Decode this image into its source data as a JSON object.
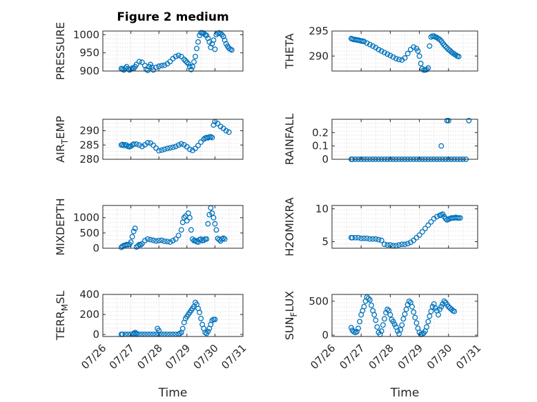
{
  "colors": {
    "marker": "#0072BD",
    "axis": "#262626",
    "grid": "#d9d9d9"
  },
  "chart_data": [
    {
      "type": "scatter",
      "title": "Figure 2 medium",
      "ylabel": "PRESSURE",
      "ylabel_sub": "",
      "ylabel_tail": "",
      "ylim": [
        900,
        1010
      ],
      "yticks": [
        900,
        950,
        1000
      ],
      "ytick_labels": [
        "900",
        "950",
        "1000"
      ],
      "grid": true,
      "x": [
        0.66,
        0.7,
        0.75,
        0.8,
        0.85,
        0.9,
        0.95,
        1.0,
        1.05,
        1.1,
        1.15,
        1.2,
        1.3,
        1.4,
        1.5,
        1.55,
        1.6,
        1.65,
        1.7,
        1.75,
        1.8,
        1.9,
        2.0,
        2.1,
        2.2,
        2.3,
        2.4,
        2.5,
        2.6,
        2.7,
        2.8,
        2.9,
        2.95,
        3.0,
        3.05,
        3.1,
        3.15,
        3.2,
        3.25,
        3.3,
        3.35,
        3.4,
        3.45,
        3.5,
        3.55,
        3.6,
        3.65,
        3.7,
        3.75,
        3.8,
        3.85,
        3.9,
        3.95,
        4.0,
        4.05,
        4.1,
        4.15,
        4.2,
        4.25,
        4.3,
        4.35,
        4.4,
        4.45,
        4.5,
        4.55,
        4.6
      ],
      "y": [
        907,
        905,
        903,
        908,
        912,
        906,
        903,
        905,
        908,
        907,
        912,
        918,
        926,
        924,
        915,
        905,
        902,
        912,
        918,
        910,
        903,
        910,
        913,
        915,
        916,
        920,
        926,
        934,
        940,
        943,
        940,
        932,
        928,
        924,
        920,
        912,
        904,
        912,
        925,
        940,
        962,
        980,
        998,
        1005,
        1005,
        1004,
        1000,
        998,
        990,
        980,
        965,
        975,
        985,
        960,
        1000,
        1004,
        1005,
        1003,
        1000,
        995,
        985,
        975,
        968,
        963,
        960,
        958
      ]
    },
    {
      "type": "scatter",
      "title": "",
      "ylabel": "THETA",
      "ylabel_sub": "",
      "ylabel_tail": "",
      "ylim": [
        287,
        295
      ],
      "yticks": [
        290,
        295
      ],
      "ytick_labels": [
        "290",
        "295"
      ],
      "grid": true,
      "x": [
        0.66,
        0.7,
        0.75,
        0.8,
        0.85,
        0.9,
        0.95,
        1.0,
        1.05,
        1.1,
        1.2,
        1.3,
        1.4,
        1.5,
        1.6,
        1.7,
        1.8,
        1.9,
        2.0,
        2.1,
        2.2,
        2.3,
        2.4,
        2.5,
        2.6,
        2.7,
        2.8,
        2.9,
        2.95,
        3.0,
        3.05,
        3.1,
        3.15,
        3.2,
        3.25,
        3.3,
        3.35,
        3.4,
        3.45,
        3.5,
        3.55,
        3.6,
        3.65,
        3.7,
        3.75,
        3.8,
        3.85,
        3.9,
        3.95,
        4.0,
        4.05,
        4.1,
        4.15,
        4.2,
        4.25,
        4.3,
        4.35
      ],
      "y": [
        293.5,
        293.4,
        293.3,
        293.3,
        293.2,
        293.2,
        293.1,
        293.0,
        293.0,
        292.9,
        292.6,
        292.3,
        292.0,
        291.7,
        291.3,
        291.0,
        290.7,
        290.4,
        290.1,
        289.8,
        289.5,
        289.3,
        289.2,
        289.6,
        290.5,
        291.3,
        291.8,
        291.5,
        291.0,
        290.0,
        288.5,
        287.5,
        287.2,
        287.2,
        287.3,
        287.6,
        292.0,
        293.8,
        294.0,
        294.0,
        293.8,
        293.7,
        293.5,
        293.3,
        293.0,
        292.6,
        292.2,
        291.9,
        291.6,
        291.3,
        291.1,
        290.8,
        290.6,
        290.4,
        290.2,
        290.0,
        289.9
      ]
    },
    {
      "type": "scatter",
      "title": "",
      "ylabel": "AIR",
      "ylabel_sub": "T",
      "ylabel_tail": "EMP",
      "ylim": [
        280,
        294
      ],
      "yticks": [
        280,
        285,
        290
      ],
      "ytick_labels": [
        "280",
        "285",
        "290"
      ],
      "grid": true,
      "x": [
        0.66,
        0.7,
        0.75,
        0.8,
        0.85,
        0.9,
        0.95,
        1.0,
        1.05,
        1.1,
        1.2,
        1.3,
        1.4,
        1.5,
        1.6,
        1.7,
        1.8,
        1.9,
        2.0,
        2.1,
        2.2,
        2.3,
        2.4,
        2.5,
        2.6,
        2.7,
        2.8,
        2.9,
        3.0,
        3.1,
        3.2,
        3.3,
        3.4,
        3.5,
        3.6,
        3.65,
        3.7,
        3.75,
        3.8,
        3.85,
        3.9,
        3.95,
        4.0,
        4.1,
        4.2,
        4.3,
        4.4,
        4.5
      ],
      "y": [
        285.0,
        285.2,
        284.8,
        285.1,
        284.9,
        284.5,
        284.4,
        284.6,
        285.0,
        285.3,
        285.3,
        285.0,
        284.5,
        285.1,
        285.8,
        285.7,
        284.9,
        283.9,
        283.0,
        283.2,
        283.5,
        283.8,
        284.0,
        284.2,
        284.5,
        285.0,
        285.4,
        285.1,
        284.4,
        283.5,
        283.1,
        283.8,
        284.8,
        286.0,
        287.0,
        287.4,
        287.6,
        287.5,
        287.8,
        287.9,
        287.6,
        292.0,
        293.2,
        292.5,
        291.5,
        290.8,
        290.0,
        289.5
      ]
    },
    {
      "type": "scatter",
      "title": "",
      "ylabel": "RAINFALL",
      "ylabel_sub": "",
      "ylabel_tail": "",
      "ylim": [
        0,
        0.3
      ],
      "yticks": [
        0,
        0.1,
        0.2
      ],
      "ytick_labels": [
        "0",
        "0.1",
        "0.2"
      ],
      "grid": true,
      "x": [
        0.66,
        0.7,
        0.8,
        0.9,
        1.0,
        1.1,
        1.2,
        1.3,
        1.4,
        1.5,
        1.6,
        1.7,
        1.8,
        1.9,
        2.0,
        2.1,
        2.2,
        2.3,
        2.4,
        2.5,
        2.6,
        2.7,
        2.8,
        2.9,
        3.0,
        3.1,
        3.2,
        3.3,
        3.4,
        3.5,
        3.6,
        3.7,
        3.8,
        3.9,
        4.0,
        4.1,
        4.2,
        4.3,
        4.4,
        4.5,
        4.6,
        3.75,
        3.95,
        4.0,
        4.7
      ],
      "y": [
        0,
        0,
        0,
        0,
        0,
        0,
        0,
        0,
        0,
        0,
        0,
        0,
        0,
        0,
        0,
        0,
        0,
        0,
        0,
        0,
        0,
        0,
        0,
        0,
        0,
        0,
        0,
        0,
        0,
        0,
        0,
        0,
        0,
        0,
        0,
        0,
        0,
        0,
        0,
        0,
        0,
        0.1,
        0.29,
        0.29,
        0.29
      ]
    },
    {
      "type": "scatter",
      "title": "",
      "ylabel": "MIXDEPTH",
      "ylabel_sub": "",
      "ylabel_tail": "",
      "ylim": [
        0,
        1400
      ],
      "yticks": [
        0,
        500,
        1000
      ],
      "ytick_labels": [
        "0",
        "500",
        "1000"
      ],
      "grid": true,
      "x": [
        0.66,
        0.7,
        0.75,
        0.8,
        0.85,
        0.9,
        0.95,
        1.0,
        1.05,
        1.1,
        1.15,
        1.2,
        1.25,
        1.3,
        1.35,
        1.4,
        1.5,
        1.6,
        1.7,
        1.8,
        1.9,
        2.0,
        2.1,
        2.2,
        2.3,
        2.4,
        2.5,
        2.6,
        2.7,
        2.8,
        2.85,
        2.9,
        2.95,
        3.0,
        3.05,
        3.1,
        3.15,
        3.2,
        3.25,
        3.3,
        3.35,
        3.4,
        3.45,
        3.5,
        3.55,
        3.6,
        3.65,
        3.7,
        3.75,
        3.8,
        3.85,
        3.9,
        3.95,
        4.0,
        4.05,
        4.1,
        4.15,
        4.2,
        4.25,
        4.3,
        4.35
      ],
      "y": [
        30,
        60,
        90,
        100,
        120,
        110,
        130,
        200,
        380,
        550,
        650,
        40,
        80,
        120,
        110,
        150,
        250,
        300,
        280,
        260,
        240,
        250,
        260,
        230,
        220,
        200,
        250,
        300,
        420,
        600,
        850,
        1000,
        1050,
        900,
        1150,
        1000,
        600,
        300,
        250,
        250,
        220,
        200,
        280,
        300,
        250,
        260,
        300,
        300,
        800,
        1100,
        1320,
        1150,
        1000,
        800,
        600,
        320,
        280,
        240,
        300,
        330,
        300
      ]
    },
    {
      "type": "scatter",
      "title": "",
      "ylabel": "H2OMIXRA",
      "ylabel_sub": "",
      "ylabel_tail": "",
      "ylim": [
        4,
        10.5
      ],
      "yticks": [
        5,
        10
      ],
      "ytick_labels": [
        "5",
        "10"
      ],
      "grid": true,
      "x": [
        0.66,
        0.7,
        0.8,
        0.9,
        1.0,
        1.1,
        1.2,
        1.3,
        1.4,
        1.5,
        1.6,
        1.7,
        1.8,
        1.9,
        2.0,
        2.1,
        2.2,
        2.3,
        2.4,
        2.5,
        2.6,
        2.7,
        2.8,
        2.9,
        3.0,
        3.1,
        3.2,
        3.3,
        3.4,
        3.5,
        3.6,
        3.7,
        3.75,
        3.8,
        3.85,
        3.9,
        3.95,
        4.0,
        4.05,
        4.1,
        4.15,
        4.2,
        4.25,
        4.3,
        4.35,
        4.4
      ],
      "y": [
        5.6,
        5.6,
        5.6,
        5.6,
        5.5,
        5.5,
        5.5,
        5.4,
        5.4,
        5.4,
        5.3,
        5.2,
        4.6,
        4.5,
        4.5,
        4.4,
        4.4,
        4.5,
        4.6,
        4.6,
        4.7,
        4.9,
        5.2,
        5.6,
        6.0,
        6.5,
        7.0,
        7.5,
        8.0,
        8.5,
        8.8,
        9.0,
        9.1,
        9.2,
        8.8,
        8.5,
        8.3,
        8.4,
        8.5,
        8.6,
        8.6,
        8.6,
        8.7,
        8.6,
        8.6,
        8.6
      ]
    },
    {
      "type": "scatter",
      "title": "",
      "ylabel": "TERR",
      "ylabel_sub": "M",
      "ylabel_tail": "SL",
      "ylim": [
        -20,
        400
      ],
      "yticks": [
        0,
        200,
        400
      ],
      "ytick_labels": [
        "0",
        "200",
        "400"
      ],
      "grid": true,
      "x": [
        0.66,
        0.7,
        0.8,
        0.9,
        1.0,
        1.1,
        1.2,
        1.3,
        1.4,
        1.5,
        1.6,
        1.7,
        1.8,
        1.9,
        2.0,
        2.1,
        2.2,
        2.3,
        2.4,
        2.5,
        2.6,
        2.7,
        2.75,
        2.8,
        2.85,
        2.9,
        2.95,
        3.0,
        3.05,
        3.1,
        3.15,
        3.2,
        3.25,
        3.3,
        3.35,
        3.4,
        3.45,
        3.5,
        3.55,
        3.6,
        3.65,
        3.7,
        3.75,
        3.8,
        3.85,
        3.9,
        3.95,
        4.0,
        1.1,
        1.15,
        1.2,
        1.95,
        2.0
      ],
      "y": [
        2,
        2,
        2,
        2,
        2,
        2,
        2,
        2,
        2,
        2,
        2,
        2,
        2,
        2,
        2,
        2,
        2,
        2,
        2,
        2,
        2,
        2,
        10,
        20,
        60,
        120,
        160,
        180,
        200,
        220,
        240,
        260,
        280,
        320,
        300,
        260,
        220,
        160,
        100,
        60,
        20,
        10,
        30,
        60,
        100,
        140,
        150,
        150,
        10,
        20,
        10,
        60,
        40
      ]
    },
    {
      "type": "scatter",
      "title": "",
      "ylabel": "SUN",
      "ylabel_sub": "F",
      "ylabel_tail": "LUX",
      "ylim": [
        -20,
        600
      ],
      "yticks": [
        0,
        500
      ],
      "ytick_labels": [
        "0",
        "500"
      ],
      "grid": true,
      "x": [
        0.66,
        0.7,
        0.75,
        0.8,
        0.85,
        0.9,
        0.95,
        1.0,
        1.05,
        1.1,
        1.15,
        1.2,
        1.25,
        1.3,
        1.35,
        1.4,
        1.45,
        1.5,
        1.55,
        1.6,
        1.65,
        1.7,
        1.75,
        1.8,
        1.85,
        1.9,
        1.95,
        2.0,
        2.05,
        2.1,
        2.15,
        2.2,
        2.25,
        2.3,
        2.35,
        2.4,
        2.45,
        2.5,
        2.55,
        2.6,
        2.65,
        2.7,
        2.75,
        2.8,
        2.85,
        2.9,
        2.95,
        3.0,
        3.05,
        3.1,
        3.15,
        3.2,
        3.25,
        3.3,
        3.35,
        3.4,
        3.45,
        3.5,
        3.55,
        3.6,
        3.65,
        3.7,
        3.75,
        3.8,
        3.85,
        3.9,
        3.95,
        4.0,
        4.05,
        4.1,
        4.15,
        4.2
      ],
      "y": [
        110,
        70,
        50,
        40,
        50,
        100,
        200,
        300,
        360,
        420,
        500,
        560,
        540,
        520,
        440,
        360,
        300,
        220,
        120,
        40,
        10,
        60,
        150,
        240,
        330,
        380,
        360,
        300,
        230,
        200,
        160,
        120,
        60,
        20,
        80,
        150,
        240,
        310,
        380,
        450,
        500,
        480,
        420,
        340,
        260,
        180,
        100,
        40,
        10,
        20,
        30,
        60,
        120,
        200,
        280,
        350,
        420,
        460,
        400,
        360,
        300,
        380,
        420,
        460,
        500,
        480,
        450,
        420,
        400,
        380,
        360,
        350
      ]
    }
  ],
  "xaxis": {
    "label": "Time",
    "xlim": [
      0,
      5
    ],
    "ticks": [
      0,
      1,
      2,
      3,
      4,
      5
    ],
    "tick_labels": [
      "07/26",
      "07/27",
      "07/28",
      "07/29",
      "07/30",
      "07/31"
    ]
  }
}
